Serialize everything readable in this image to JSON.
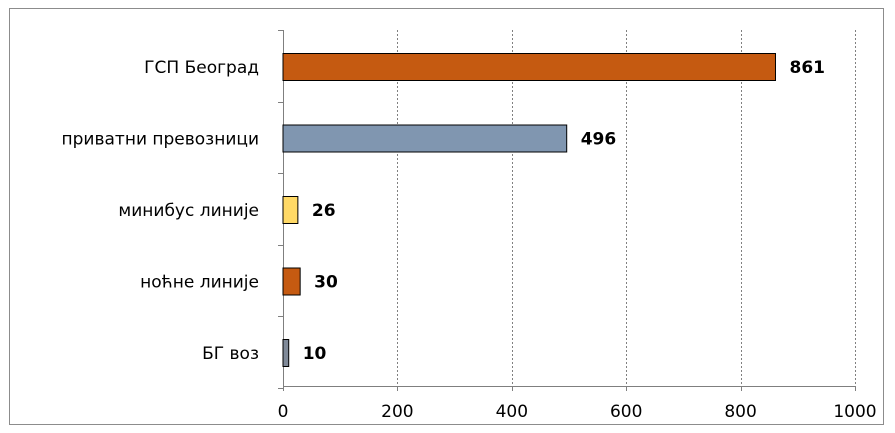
{
  "chart_data": {
    "type": "bar",
    "orientation": "horizontal",
    "categories": [
      "ГСП Београд",
      "приватни превозници",
      "минибус линије",
      "ноћне линије",
      "БГ воз"
    ],
    "values": [
      861,
      496,
      26,
      30,
      10
    ],
    "data_labels": [
      "861",
      "496",
      "26",
      "30",
      "10"
    ],
    "bar_colors": [
      "#c55a11",
      "#8096b0",
      "#ffd966",
      "#c55a11",
      "#808a99"
    ],
    "bar_stroke": "#000000",
    "xlim": [
      0,
      1000
    ],
    "x_ticks": [
      0,
      200,
      400,
      600,
      800,
      1000
    ],
    "x_tick_labels": [
      "0",
      "200",
      "400",
      "600",
      "800",
      "1000"
    ],
    "grid": "vertical-dashed",
    "grid_color": "#808080",
    "legend": "none",
    "title": "",
    "xlabel": "",
    "ylabel": ""
  }
}
